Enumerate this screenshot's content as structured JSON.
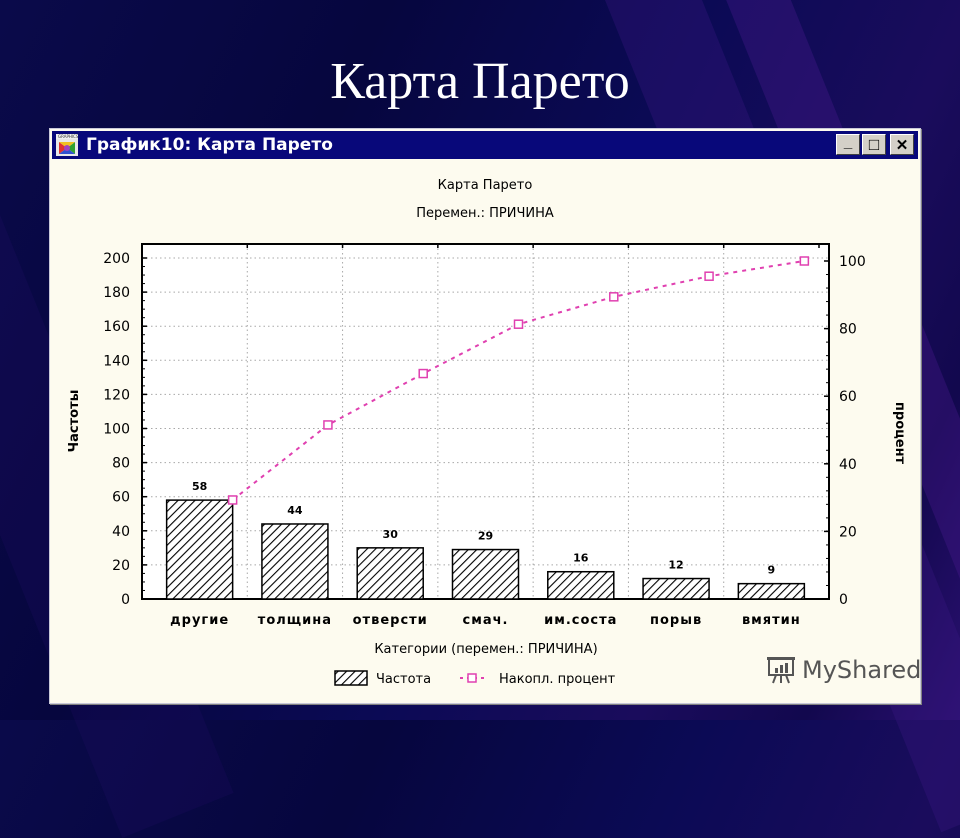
{
  "slide": {
    "title": "Карта Парето"
  },
  "window": {
    "title": "График10: Карта Парето",
    "buttons": {
      "minimize": "_",
      "maximize": "□",
      "close": "✕"
    }
  },
  "colors": {
    "background": "#06063e",
    "titlebar": "#08087a",
    "chart_bg": "#fdfbef",
    "plot_bg": "#ffffff",
    "bar_hatch": "#000000",
    "line": "#e040b0"
  },
  "watermark": {
    "text": "MyShared",
    "icon": "presentation-chart-icon"
  },
  "chart_data": {
    "type": "bar",
    "title": "Карта Парето",
    "subtitle": "Перемен.: ПРИЧИНА",
    "xlabel": "Категории (перемен.: ПРИЧИНА)",
    "ylabel": "Частоты",
    "y2label": "процент",
    "categories": [
      "другие",
      "толщина",
      "отверсти",
      "смач.",
      "им.соста",
      "порыв",
      "вмятин"
    ],
    "series": [
      {
        "name": "Частота",
        "type": "bar",
        "style": "hatched",
        "values": [
          58,
          44,
          30,
          29,
          16,
          12,
          9
        ],
        "labels": [
          "58",
          "44",
          "30",
          "29",
          "16",
          "12",
          "9"
        ]
      },
      {
        "name": "Накопл. процент",
        "type": "line",
        "style": "dashed-with-square-markers",
        "axis": "right",
        "values": [
          29.3,
          51.5,
          66.7,
          81.3,
          89.4,
          95.5,
          100
        ]
      }
    ],
    "ylim": [
      0,
      200
    ],
    "y_ticks": [
      "0",
      "20",
      "40",
      "60",
      "80",
      "100",
      "120",
      "140",
      "160",
      "180",
      "200"
    ],
    "y2lim": [
      0,
      100
    ],
    "y2_ticks": [
      "0",
      "20",
      "40",
      "60",
      "80",
      "100"
    ],
    "grid": true,
    "legend": {
      "position": "bottom",
      "items": [
        "Частота",
        "Накопл. процент"
      ]
    }
  }
}
